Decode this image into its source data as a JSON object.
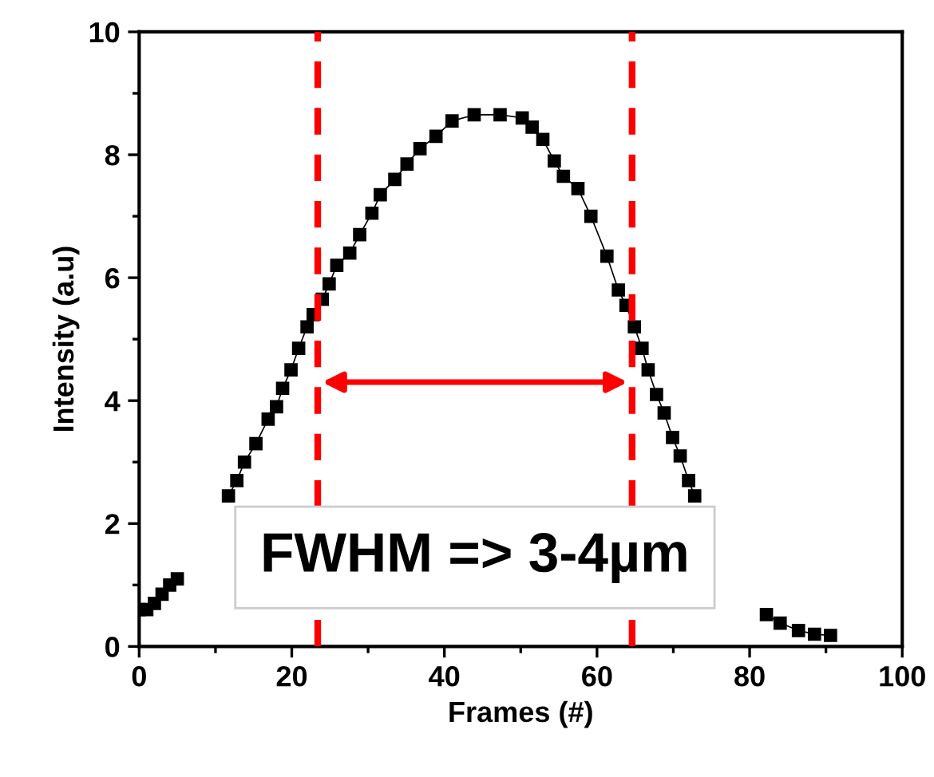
{
  "chart_data": {
    "type": "line",
    "xlabel": "Frames (#)",
    "ylabel": "Intensity (a.u)",
    "series": [
      {
        "color": "#000000",
        "x": [
          0,
          1,
          2,
          3,
          4,
          5,
          8,
          11.7,
          12.8,
          13.8,
          15.3,
          16.9,
          18,
          18.8,
          19.9,
          20.9,
          22,
          22.8,
          24,
          24.9,
          25.9,
          27.6,
          28.9,
          30.5,
          31.6,
          33.5,
          35.1,
          36.8,
          38.9,
          41,
          43.9,
          47.3,
          50.2,
          51.5,
          52.9,
          54.4,
          55.6,
          57.5,
          59.2,
          61.3,
          62.8,
          63.8,
          64.9,
          65.9,
          66.7,
          67.8,
          68.8,
          69.9,
          70.9,
          72,
          72.8,
          77,
          82.2,
          84,
          86.4,
          88.5,
          90.6
        ],
        "values": [
          0.6,
          0.6,
          0.7,
          0.85,
          1.0,
          1.1,
          null,
          2.45,
          2.7,
          3.0,
          3.3,
          3.7,
          3.9,
          4.2,
          4.5,
          4.85,
          5.2,
          5.4,
          5.65,
          5.9,
          6.2,
          6.4,
          6.7,
          7.05,
          7.35,
          7.6,
          7.85,
          8.1,
          8.3,
          8.55,
          8.65,
          8.65,
          8.6,
          8.45,
          8.25,
          7.9,
          7.65,
          7.45,
          7.0,
          6.35,
          5.8,
          5.55,
          5.2,
          4.85,
          4.5,
          4.1,
          3.8,
          3.4,
          3.1,
          2.7,
          2.45,
          null,
          0.52,
          0.38,
          0.26,
          0.2,
          0.18
        ]
      }
    ],
    "xlim": [
      0,
      100
    ],
    "xticks": [
      0,
      20,
      40,
      60,
      80,
      100
    ],
    "ylim": [
      0,
      10
    ],
    "yticks": [
      0,
      2,
      4,
      6,
      8,
      10
    ],
    "marker": "square",
    "grid": false,
    "ref_lines": [
      {
        "axis": "x",
        "value": 23.4,
        "color": "#ff0000",
        "line_style": "dashed"
      },
      {
        "axis": "x",
        "value": 64.6,
        "color": "#ff0000",
        "line_style": "dashed"
      }
    ],
    "annotations": [
      "FWHM => 3-4µm"
    ]
  }
}
